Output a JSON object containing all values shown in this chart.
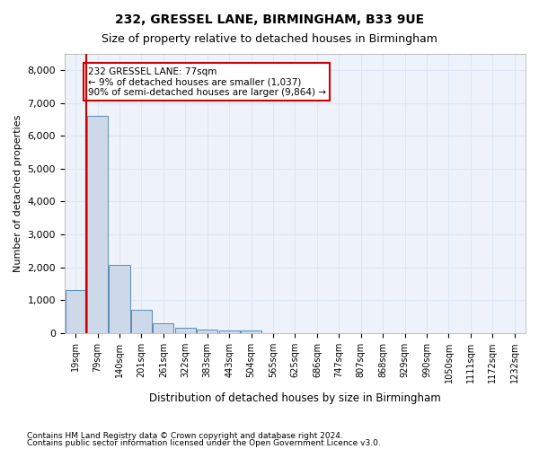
{
  "title": "232, GRESSEL LANE, BIRMINGHAM, B33 9UE",
  "subtitle": "Size of property relative to detached houses in Birmingham",
  "xlabel": "Distribution of detached houses by size in Birmingham",
  "ylabel": "Number of detached properties",
  "footnote1": "Contains HM Land Registry data © Crown copyright and database right 2024.",
  "footnote2": "Contains public sector information licensed under the Open Government Licence v3.0.",
  "annotation_line1": "232 GRESSEL LANE: 77sqm",
  "annotation_line2": "← 9% of detached houses are smaller (1,037)",
  "annotation_line3": "90% of semi-detached houses are larger (9,864) →",
  "property_size": 77,
  "bar_color": "#cdd8e8",
  "bar_edge_color": "#5b8db8",
  "vline_color": "#cc0000",
  "annotation_box_color": "#cc0000",
  "grid_color": "#dce6f5",
  "background_color": "#eef2fa",
  "bin_labels": [
    "19sqm",
    "79sqm",
    "140sqm",
    "201sqm",
    "261sqm",
    "322sqm",
    "383sqm",
    "443sqm",
    "504sqm",
    "565sqm",
    "625sqm",
    "686sqm",
    "747sqm",
    "807sqm",
    "868sqm",
    "929sqm",
    "990sqm",
    "1050sqm",
    "1111sqm",
    "1172sqm",
    "1232sqm"
  ],
  "bar_heights": [
    1300,
    6600,
    2080,
    700,
    290,
    150,
    100,
    65,
    60,
    0,
    0,
    0,
    0,
    0,
    0,
    0,
    0,
    0,
    0,
    0,
    0
  ],
  "ylim": [
    0,
    8500
  ],
  "yticks": [
    0,
    1000,
    2000,
    3000,
    4000,
    5000,
    6000,
    7000,
    8000
  ]
}
